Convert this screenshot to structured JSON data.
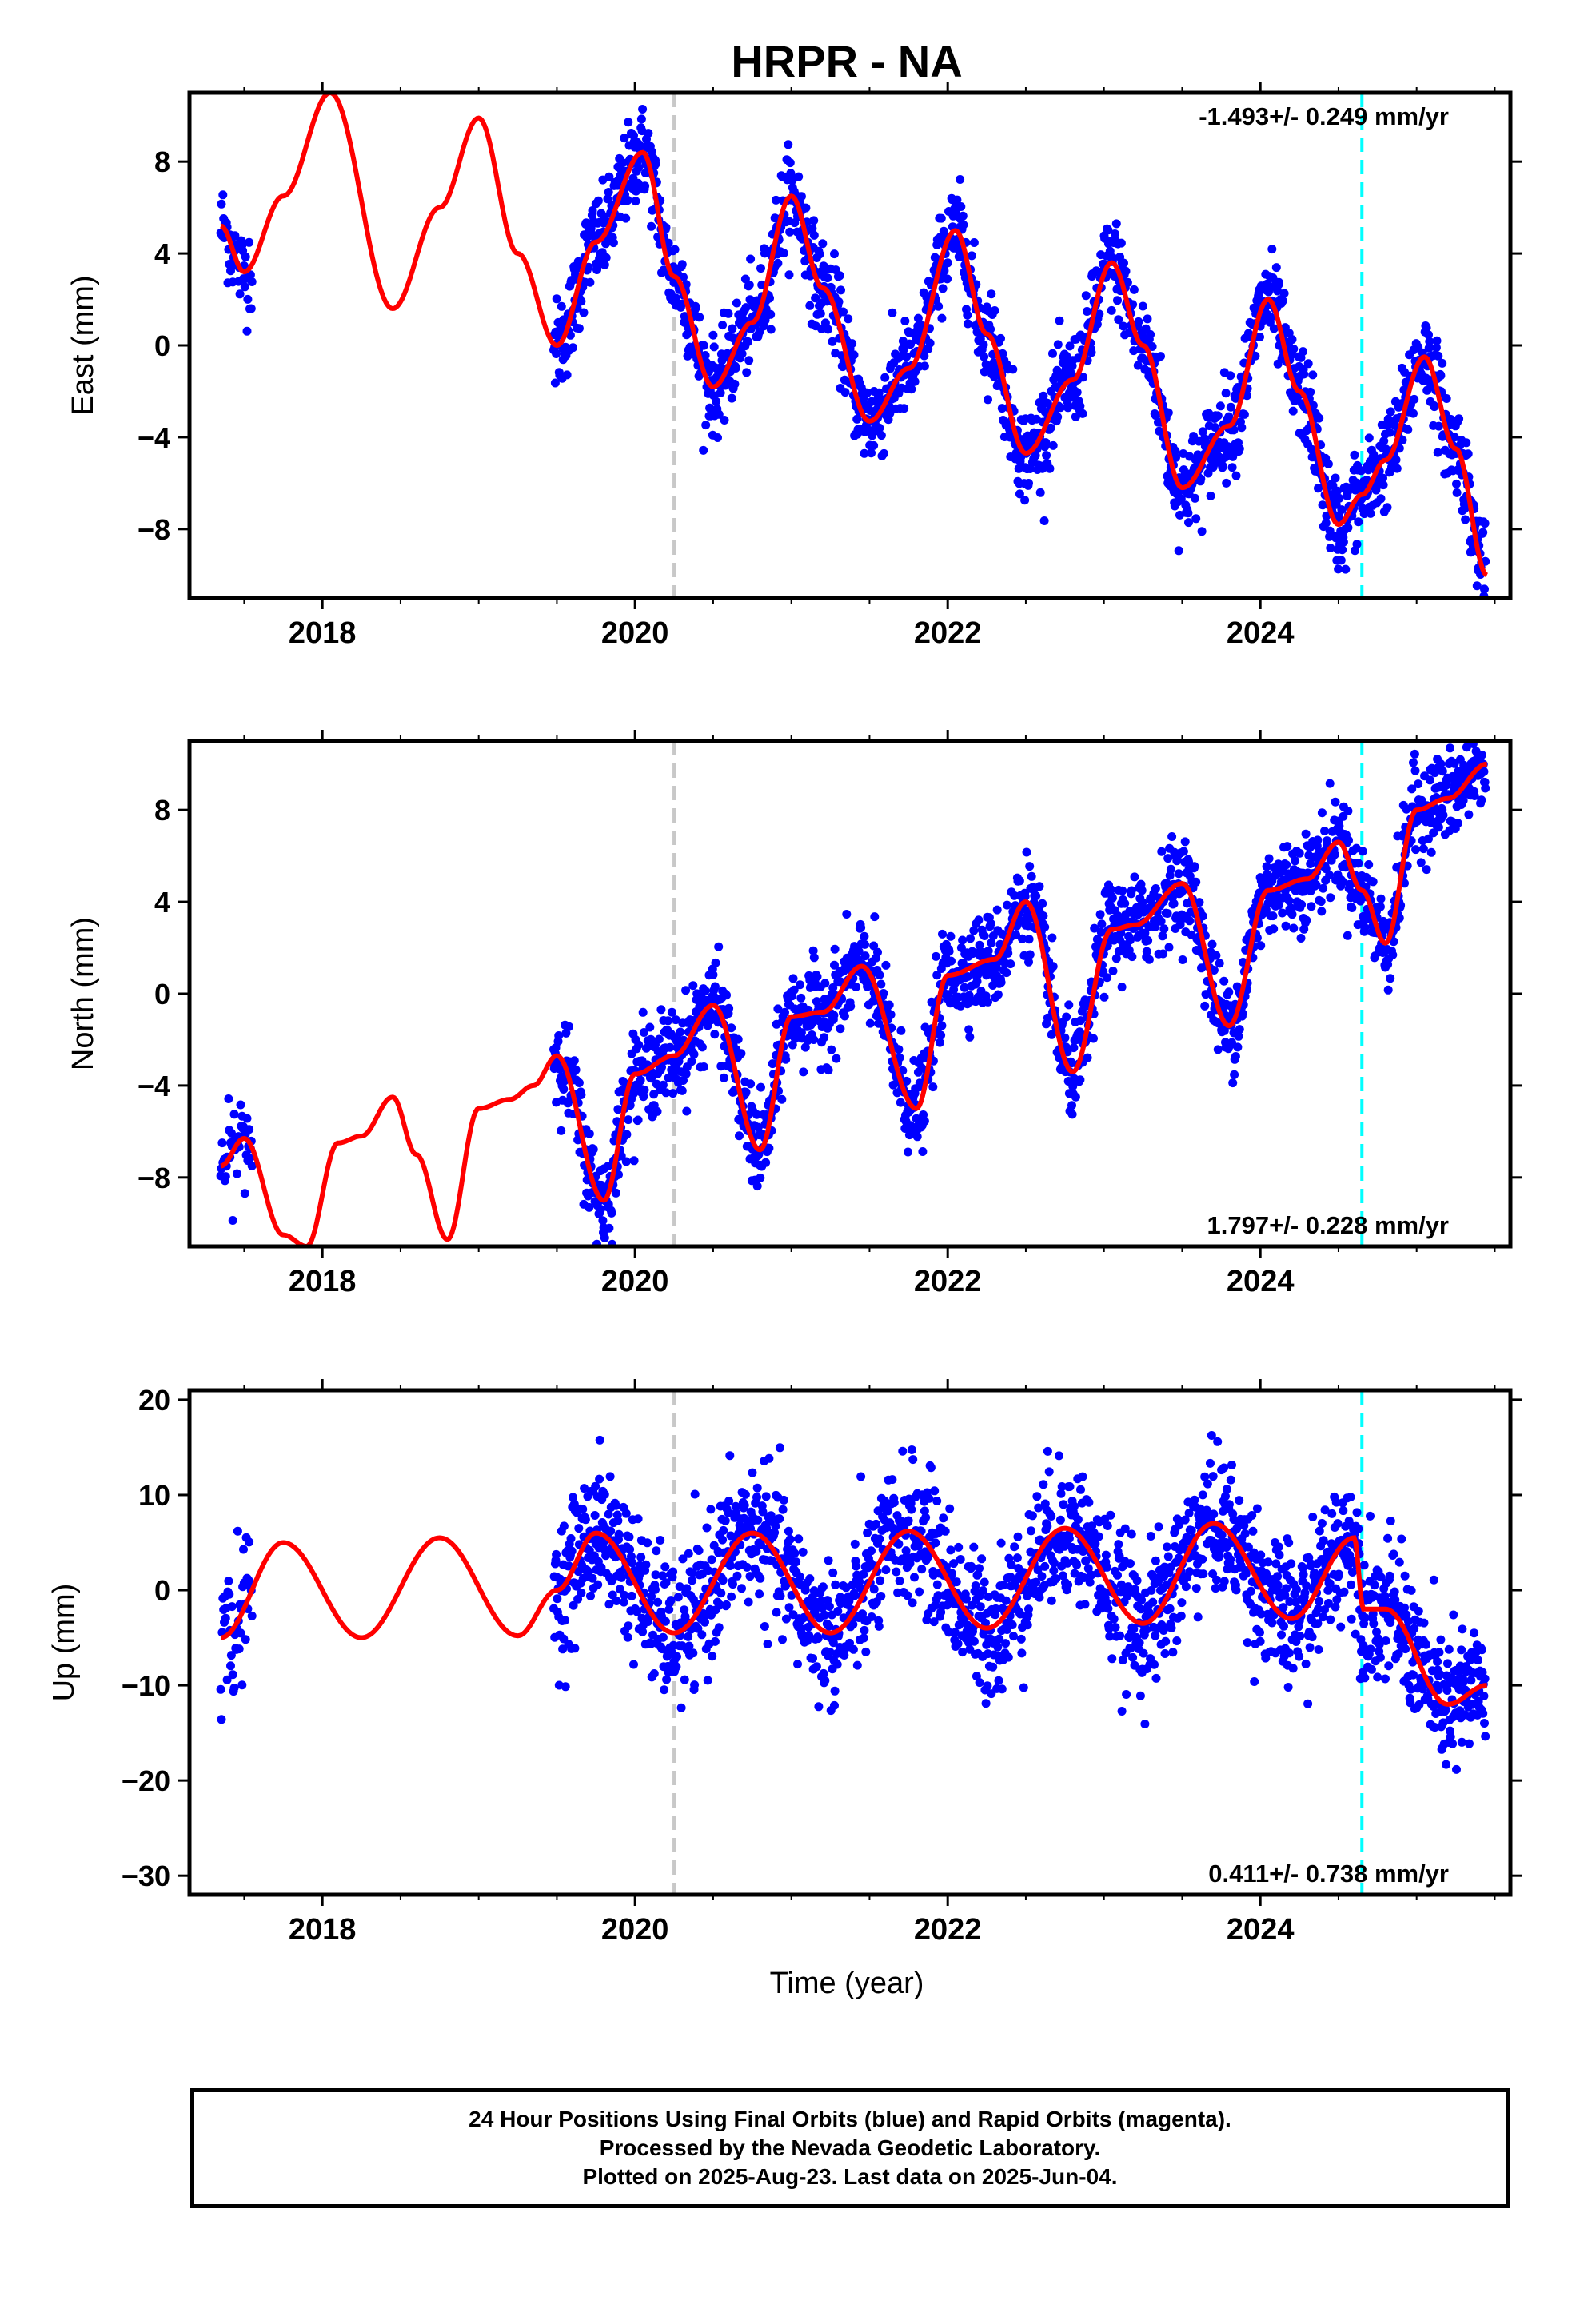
{
  "title": "HRPR - NA",
  "x_axis": {
    "label": "Time (year)",
    "ticks": [
      "2018",
      "2020",
      "2022",
      "2024"
    ]
  },
  "colors": {
    "final_orbits": "#0000ff",
    "model": "#ff0000",
    "marker_2020": "#c8c8c8",
    "marker_2024": "#00ffff"
  },
  "caption": {
    "line1": "24 Hour Positions Using Final Orbits (blue) and Rapid Orbits (magenta).",
    "line2": "Processed by the Nevada Geodetic Laboratory.",
    "line3": "Plotted on 2025-Aug-23. Last data on 2025-Jun-04."
  },
  "chart_data": [
    {
      "type": "scatter",
      "ylabel": "East (mm)",
      "xlim": [
        2017.15,
        2025.6
      ],
      "ylim": [
        -11,
        11
      ],
      "yticks": [
        "8",
        "4",
        "0",
        "−4",
        "−8"
      ],
      "ytick_values": [
        8,
        4,
        0,
        -4,
        -8
      ],
      "rate": "-1.493+/- 0.249 mm/yr",
      "rate_position": "top-right",
      "vertical_markers": [
        2020.25,
        2024.65
      ],
      "model_curve": {
        "x": [
          2017.35,
          2017.5,
          2017.75,
          2018.05,
          2018.45,
          2018.75,
          2019.0,
          2019.25,
          2019.5,
          2019.75,
          2020.05,
          2020.25,
          2020.5,
          2020.75,
          2021.0,
          2021.2,
          2021.5,
          2021.75,
          2022.05,
          2022.25,
          2022.5,
          2022.8,
          2023.05,
          2023.25,
          2023.5,
          2023.8,
          2024.05,
          2024.25,
          2024.5,
          2024.65,
          2024.8,
          2025.05,
          2025.25,
          2025.45
        ],
        "y": [
          5.2,
          3.2,
          6.5,
          11.0,
          1.6,
          6.0,
          9.9,
          4.0,
          0.0,
          4.5,
          8.4,
          3.0,
          -1.8,
          1.0,
          6.5,
          2.5,
          -3.3,
          -1.0,
          5.0,
          0.5,
          -4.7,
          -1.5,
          3.6,
          0.0,
          -6.2,
          -3.5,
          2.0,
          -2.0,
          -7.8,
          -6.5,
          -5.0,
          -0.5,
          -4.5,
          -10.0
        ]
      }
    },
    {
      "type": "scatter",
      "ylabel": "North (mm)",
      "xlim": [
        2017.15,
        2025.6
      ],
      "ylim": [
        -11,
        11
      ],
      "yticks": [
        "8",
        "4",
        "0",
        "−4",
        "−8"
      ],
      "ytick_values": [
        8,
        4,
        0,
        -4,
        -8
      ],
      "rate": "1.797+/- 0.228 mm/yr",
      "rate_position": "bottom-right",
      "vertical_markers": [
        2020.25,
        2024.65
      ],
      "model_curve": {
        "x": [
          2017.35,
          2017.5,
          2017.75,
          2017.9,
          2018.1,
          2018.25,
          2018.45,
          2018.6,
          2018.8,
          2019.0,
          2019.2,
          2019.35,
          2019.5,
          2019.8,
          2020.0,
          2020.25,
          2020.5,
          2020.8,
          2021.0,
          2021.2,
          2021.45,
          2021.8,
          2022.0,
          2022.3,
          2022.5,
          2022.8,
          2023.05,
          2023.2,
          2023.5,
          2023.8,
          2024.05,
          2024.3,
          2024.5,
          2024.65,
          2024.8,
          2025.0,
          2025.2,
          2025.45
        ],
        "y": [
          -7.5,
          -6.3,
          -10.5,
          -11.0,
          -6.5,
          -6.2,
          -4.5,
          -7.0,
          -10.7,
          -5.0,
          -4.6,
          -4.0,
          -2.7,
          -9.0,
          -3.5,
          -2.7,
          -0.5,
          -6.8,
          -1.0,
          -0.8,
          1.2,
          -5.0,
          0.8,
          1.5,
          4.0,
          -3.4,
          2.8,
          3.0,
          4.8,
          -1.4,
          4.5,
          5.0,
          6.6,
          4.5,
          2.2,
          8.0,
          8.5,
          10.0
        ]
      }
    },
    {
      "type": "scatter",
      "ylabel": "Up (mm)",
      "xlim": [
        2017.15,
        2025.6
      ],
      "ylim": [
        -32,
        21
      ],
      "yticks": [
        "20",
        "10",
        "0",
        "−10",
        "−20",
        "−30"
      ],
      "ytick_values": [
        20,
        10,
        0,
        -10,
        -20,
        -30
      ],
      "rate": "0.411+/- 0.738 mm/yr",
      "rate_position": "bottom-right",
      "vertical_markers": [
        2020.25,
        2024.65
      ],
      "model_curve": {
        "x": [
          2017.35,
          2017.75,
          2018.25,
          2018.75,
          2019.25,
          2019.5,
          2019.75,
          2020.25,
          2020.75,
          2021.25,
          2021.75,
          2022.25,
          2022.75,
          2023.25,
          2023.7,
          2024.2,
          2024.6,
          2024.66,
          2024.8,
          2025.2,
          2025.45
        ],
        "y": [
          -5.0,
          5.0,
          -5.0,
          5.5,
          -4.8,
          0.0,
          6.0,
          -4.5,
          6.0,
          -4.5,
          6.2,
          -4.0,
          6.5,
          -3.5,
          7.0,
          -3.0,
          5.5,
          -2.0,
          -2.0,
          -12.0,
          -10.0
        ]
      }
    }
  ]
}
